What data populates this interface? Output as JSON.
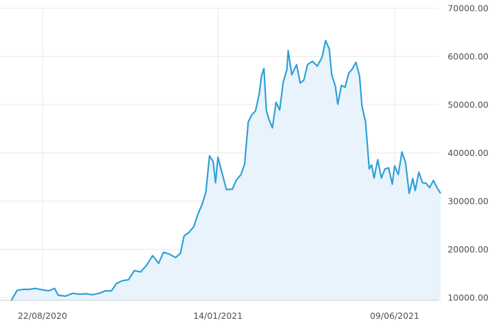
{
  "chart_data": {
    "type": "area",
    "title": "",
    "xlabel": "",
    "ylabel": "",
    "ylim": [
      9000,
      70000
    ],
    "grid": true,
    "legend": "none",
    "y_ticks": [
      10000,
      20000,
      30000,
      40000,
      50000,
      60000,
      70000
    ],
    "y_tick_labels": [
      "10000.00",
      "20000.00",
      "30000.00",
      "40000.00",
      "50000.00",
      "60000.00",
      "70000.00"
    ],
    "x_ticks": [
      "2020-08-22",
      "2021-01-14",
      "2021-06-09"
    ],
    "x_tick_labels": [
      "22/08/2020",
      "14/01/2021",
      "09/06/2021"
    ],
    "colors": {
      "line": "#2e9fd6",
      "fill": "#e8f3fb",
      "grid": "#e6e8eb",
      "axis": "#c9cdd2"
    },
    "series": [
      {
        "name": "",
        "points": [
          [
            "2020-07-27",
            9300
          ],
          [
            "2020-08-01",
            11500
          ],
          [
            "2020-08-06",
            11700
          ],
          [
            "2020-08-11",
            11700
          ],
          [
            "2020-08-16",
            11900
          ],
          [
            "2020-08-22",
            11600
          ],
          [
            "2020-08-27",
            11400
          ],
          [
            "2020-09-01",
            11900
          ],
          [
            "2020-09-04",
            10500
          ],
          [
            "2020-09-10",
            10300
          ],
          [
            "2020-09-16",
            10900
          ],
          [
            "2020-09-21",
            10700
          ],
          [
            "2020-09-27",
            10800
          ],
          [
            "2020-10-02",
            10600
          ],
          [
            "2020-10-08",
            10900
          ],
          [
            "2020-10-13",
            11400
          ],
          [
            "2020-10-18",
            11400
          ],
          [
            "2020-10-22",
            12900
          ],
          [
            "2020-10-27",
            13500
          ],
          [
            "2020-11-01",
            13700
          ],
          [
            "2020-11-06",
            15600
          ],
          [
            "2020-11-11",
            15300
          ],
          [
            "2020-11-16",
            16700
          ],
          [
            "2020-11-21",
            18700
          ],
          [
            "2020-11-26",
            17100
          ],
          [
            "2020-11-30",
            19400
          ],
          [
            "2020-12-05",
            19000
          ],
          [
            "2020-12-10",
            18300
          ],
          [
            "2020-12-14",
            19200
          ],
          [
            "2020-12-17",
            22800
          ],
          [
            "2020-12-21",
            23500
          ],
          [
            "2020-12-25",
            24700
          ],
          [
            "2020-12-28",
            27000
          ],
          [
            "2021-01-01",
            29400
          ],
          [
            "2021-01-04",
            31900
          ],
          [
            "2021-01-07",
            39400
          ],
          [
            "2021-01-10",
            38200
          ],
          [
            "2021-01-12",
            33800
          ],
          [
            "2021-01-14",
            39100
          ],
          [
            "2021-01-17",
            36200
          ],
          [
            "2021-01-21",
            32400
          ],
          [
            "2021-01-26",
            32500
          ],
          [
            "2021-01-29",
            34300
          ],
          [
            "2021-02-02",
            35500
          ],
          [
            "2021-02-05",
            37700
          ],
          [
            "2021-02-08",
            46400
          ],
          [
            "2021-02-11",
            47900
          ],
          [
            "2021-02-14",
            48700
          ],
          [
            "2021-02-17",
            52100
          ],
          [
            "2021-02-19",
            56000
          ],
          [
            "2021-02-21",
            57500
          ],
          [
            "2021-02-23",
            48800
          ],
          [
            "2021-02-25",
            47000
          ],
          [
            "2021-02-28",
            45200
          ],
          [
            "2021-03-03",
            50500
          ],
          [
            "2021-03-06",
            48900
          ],
          [
            "2021-03-09",
            54800
          ],
          [
            "2021-03-12",
            57300
          ],
          [
            "2021-03-13",
            61200
          ],
          [
            "2021-03-16",
            56200
          ],
          [
            "2021-03-20",
            58300
          ],
          [
            "2021-03-23",
            54500
          ],
          [
            "2021-03-26",
            55100
          ],
          [
            "2021-03-29",
            58300
          ],
          [
            "2021-04-02",
            59000
          ],
          [
            "2021-04-06",
            58000
          ],
          [
            "2021-04-10",
            59800
          ],
          [
            "2021-04-13",
            63300
          ],
          [
            "2021-04-16",
            61500
          ],
          [
            "2021-04-18",
            56200
          ],
          [
            "2021-04-21",
            53800
          ],
          [
            "2021-04-23",
            50100
          ],
          [
            "2021-04-26",
            54000
          ],
          [
            "2021-04-29",
            53600
          ],
          [
            "2021-05-02",
            56500
          ],
          [
            "2021-05-05",
            57400
          ],
          [
            "2021-05-08",
            58800
          ],
          [
            "2021-05-11",
            55900
          ],
          [
            "2021-05-13",
            49700
          ],
          [
            "2021-05-16",
            46400
          ],
          [
            "2021-05-19",
            36700
          ],
          [
            "2021-05-21",
            37500
          ],
          [
            "2021-05-23",
            34800
          ],
          [
            "2021-05-26",
            38600
          ],
          [
            "2021-05-29",
            34800
          ],
          [
            "2021-06-01",
            36700
          ],
          [
            "2021-06-04",
            36900
          ],
          [
            "2021-06-07",
            33500
          ],
          [
            "2021-06-09",
            37300
          ],
          [
            "2021-06-12",
            35500
          ],
          [
            "2021-06-15",
            40200
          ],
          [
            "2021-06-18",
            38000
          ],
          [
            "2021-06-21",
            31600
          ],
          [
            "2021-06-24",
            34700
          ],
          [
            "2021-06-26",
            32200
          ],
          [
            "2021-06-29",
            36000
          ],
          [
            "2021-07-02",
            33800
          ],
          [
            "2021-07-05",
            33700
          ],
          [
            "2021-07-08",
            32800
          ],
          [
            "2021-07-11",
            34300
          ],
          [
            "2021-07-14",
            32800
          ],
          [
            "2021-07-17",
            31600
          ]
        ]
      }
    ]
  }
}
